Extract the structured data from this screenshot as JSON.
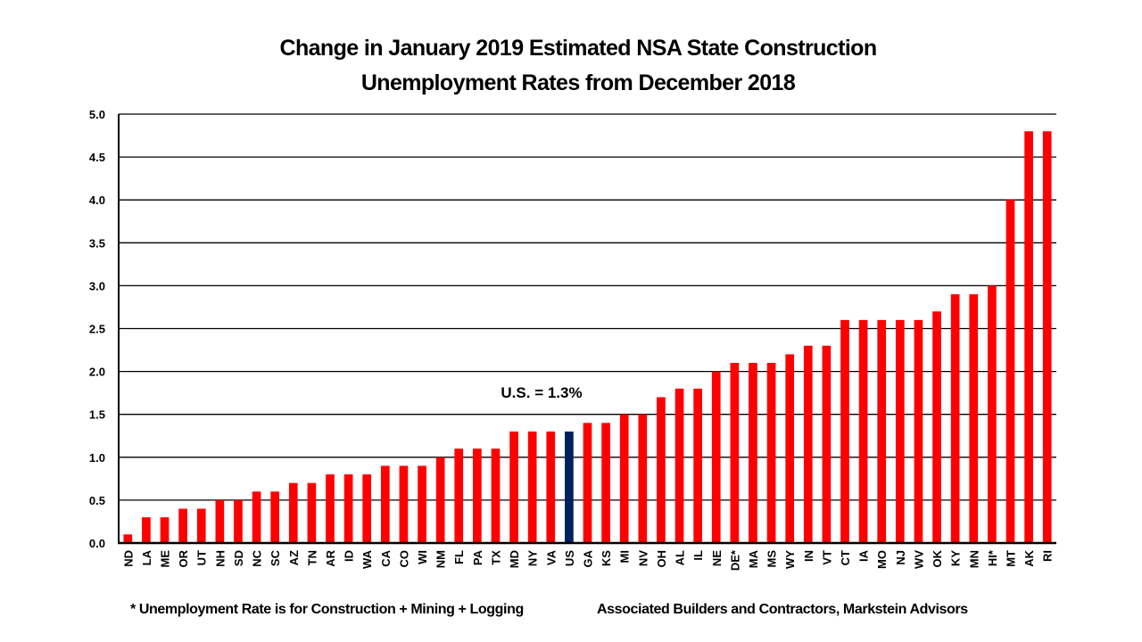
{
  "chart_data": {
    "type": "bar",
    "title_lines": [
      "Change in January 2019 Estimated NSA State Construction",
      "Unemployment Rates from December 2018"
    ],
    "xlabel": "",
    "ylabel": "",
    "ylim": [
      0,
      5.0
    ],
    "yticks": [
      "0.0",
      "0.5",
      "1.0",
      "1.5",
      "2.0",
      "2.5",
      "3.0",
      "3.5",
      "4.0",
      "4.5",
      "5.0"
    ],
    "grid": true,
    "categories": [
      "ND",
      "LA",
      "ME",
      "OR",
      "UT",
      "NH",
      "SD",
      "NC",
      "SC",
      "AZ",
      "TN",
      "AR",
      "ID",
      "WA",
      "CA",
      "CO",
      "WI",
      "NM",
      "FL",
      "PA",
      "TX",
      "MD",
      "NY",
      "VA",
      "US",
      "GA",
      "KS",
      "MI",
      "NV",
      "OH",
      "AL",
      "IL",
      "NE",
      "DE*",
      "MA",
      "MS",
      "WY",
      "IN",
      "VT",
      "CT",
      "IA",
      "MO",
      "NJ",
      "WV",
      "OK",
      "KY",
      "MN",
      "HI*",
      "MT",
      "AK",
      "RI"
    ],
    "values": [
      0.1,
      0.3,
      0.3,
      0.4,
      0.4,
      0.5,
      0.5,
      0.6,
      0.6,
      0.7,
      0.7,
      0.8,
      0.8,
      0.8,
      0.9,
      0.9,
      0.9,
      1.0,
      1.1,
      1.1,
      1.1,
      1.3,
      1.3,
      1.3,
      1.3,
      1.4,
      1.4,
      1.5,
      1.5,
      1.7,
      1.8,
      1.8,
      2.0,
      2.1,
      2.1,
      2.1,
      2.2,
      2.3,
      2.3,
      2.6,
      2.6,
      2.6,
      2.6,
      2.6,
      2.7,
      2.9,
      2.9,
      3.0,
      4.0,
      4.8,
      4.8
    ],
    "highlight_category": "US",
    "colors": {
      "bar": "#ff0000",
      "highlight": "#002060",
      "gridline": "#000000"
    },
    "annotation": "U.S. = 1.3%",
    "footnotes": {
      "left": "* Unemployment Rate is for Construction + Mining + Logging",
      "right": "Associated Builders and Contractors, Markstein Advisors"
    }
  }
}
